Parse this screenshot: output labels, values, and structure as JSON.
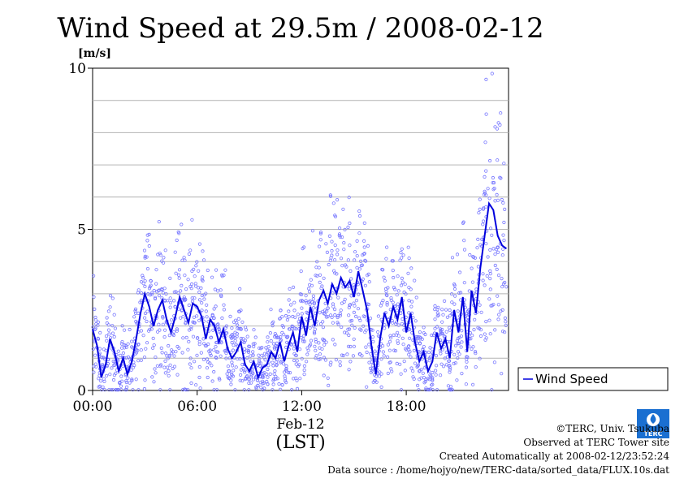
{
  "chart_data": {
    "type": "scatter+line",
    "title": "Wind Speed at 29.5m / 2008-02-12",
    "ylabel": "[m/s]",
    "xlabel": "(LST)",
    "date_label": "Feb-12",
    "x_tick_labels": [
      "00:00",
      "06:00",
      "12:00",
      "18:00"
    ],
    "x_ticks_hours": [
      0,
      6,
      12,
      18
    ],
    "xlim_hours": [
      0,
      23.87
    ],
    "y_tick_labels": [
      "0",
      "5",
      "10"
    ],
    "ylim": [
      0,
      10
    ],
    "grid": true,
    "legend": {
      "position": "right",
      "entries": [
        "Wind Speed"
      ]
    },
    "colors": {
      "line": "#0000dd",
      "points": "#7777ff"
    },
    "series": [
      {
        "name": "Wind Speed",
        "x_hours": [
          0.0,
          0.25,
          0.5,
          0.75,
          1.0,
          1.25,
          1.5,
          1.75,
          2.0,
          2.25,
          2.5,
          2.75,
          3.0,
          3.25,
          3.5,
          3.75,
          4.0,
          4.25,
          4.5,
          4.75,
          5.0,
          5.25,
          5.5,
          5.75,
          6.0,
          6.25,
          6.5,
          6.75,
          7.0,
          7.25,
          7.5,
          7.75,
          8.0,
          8.25,
          8.5,
          8.75,
          9.0,
          9.25,
          9.5,
          9.75,
          10.0,
          10.25,
          10.5,
          10.75,
          11.0,
          11.25,
          11.5,
          11.75,
          12.0,
          12.25,
          12.5,
          12.75,
          13.0,
          13.25,
          13.5,
          13.75,
          14.0,
          14.25,
          14.5,
          14.75,
          15.0,
          15.25,
          15.5,
          15.75,
          16.0,
          16.25,
          16.5,
          16.75,
          17.0,
          17.25,
          17.5,
          17.75,
          18.0,
          18.25,
          18.5,
          18.75,
          19.0,
          19.25,
          19.5,
          19.75,
          20.0,
          20.25,
          20.5,
          20.75,
          21.0,
          21.25,
          21.5,
          21.75,
          22.0,
          22.25,
          22.5,
          22.75,
          23.0,
          23.25,
          23.5,
          23.75
        ],
        "values": [
          1.9,
          1.4,
          0.4,
          0.8,
          1.6,
          1.2,
          0.6,
          1.0,
          0.5,
          0.9,
          1.6,
          2.4,
          3.0,
          2.6,
          2.0,
          2.5,
          2.8,
          2.2,
          1.8,
          2.3,
          2.9,
          2.5,
          2.1,
          2.7,
          2.6,
          2.3,
          1.6,
          2.2,
          2.0,
          1.5,
          1.9,
          1.3,
          1.0,
          1.2,
          1.5,
          0.8,
          0.6,
          0.9,
          0.4,
          0.7,
          0.8,
          1.2,
          1.0,
          1.5,
          0.9,
          1.4,
          1.8,
          1.2,
          2.3,
          1.7,
          2.6,
          2.0,
          2.8,
          3.1,
          2.7,
          3.3,
          3.0,
          3.5,
          3.2,
          3.4,
          2.9,
          3.7,
          3.1,
          2.5,
          1.4,
          0.5,
          1.6,
          2.4,
          2.0,
          2.6,
          2.2,
          2.9,
          1.8,
          2.4,
          1.5,
          0.9,
          1.2,
          0.6,
          0.9,
          1.8,
          1.3,
          1.6,
          1.0,
          2.5,
          1.8,
          2.9,
          1.2,
          3.1,
          2.4,
          3.8,
          4.8,
          5.8,
          5.6,
          4.8,
          4.5,
          4.4
        ]
      }
    ]
  },
  "footer": {
    "copyright": "©TERC, Univ. Tsukuba",
    "observed": "Observed at TERC Tower site",
    "created": "Created Automatically at 2008-02-12/23:52:24",
    "source": "Data source : /home/hojyo/new/TERC-data/sorted_data/FLUX.10s.dat"
  },
  "logo": {
    "text": "TERC",
    "color": "#1a6fd1"
  }
}
